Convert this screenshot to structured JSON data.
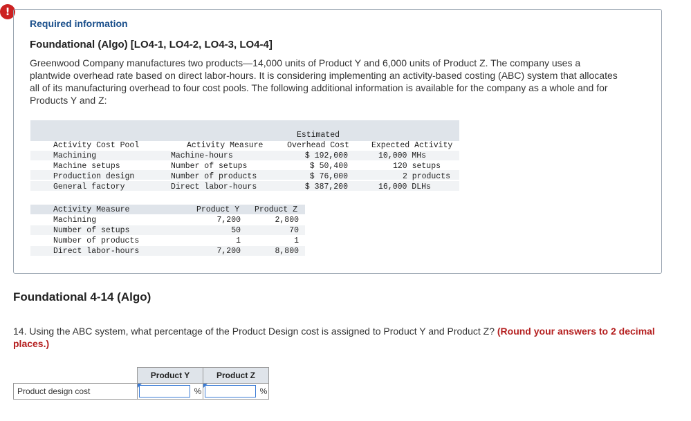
{
  "alert_icon": "!",
  "required_label": "Required information",
  "foundational_title": "Foundational (Algo) [LO4-1, LO4-2, LO4-3, LO4-4]",
  "intro_text": "Greenwood Company manufactures two products—14,000 units of Product Y and 6,000 units of Product Z. The company uses a plantwide overhead rate based on direct labor-hours. It is considering implementing an activity-based costing (ABC) system that allocates all of its manufacturing overhead to four cost pools. The following additional information is available for the company as a whole and for Products Y and Z:",
  "table1": {
    "headers": {
      "pool": "Activity Cost Pool",
      "measure": "Activity Measure",
      "cost_line1": "Estimated",
      "cost_line2": "Overhead Cost",
      "expected": "Expected Activity"
    },
    "rows": [
      {
        "pool": "Machining",
        "measure": "Machine-hours",
        "cost": "$ 192,000",
        "expected": "10,000 MHs"
      },
      {
        "pool": "Machine setups",
        "measure": "Number of setups",
        "cost": "$ 50,400",
        "expected": "120 setups"
      },
      {
        "pool": "Production design",
        "measure": "Number of products",
        "cost": "$ 76,000",
        "expected": "2 products"
      },
      {
        "pool": "General factory",
        "measure": "Direct labor-hours",
        "cost": "$ 387,200",
        "expected": "16,000 DLHs"
      }
    ]
  },
  "table2": {
    "headers": {
      "measure": "Activity Measure",
      "y": "Product Y",
      "z": "Product Z"
    },
    "rows": [
      {
        "measure": "Machining",
        "y": "7,200",
        "z": "2,800"
      },
      {
        "measure": "Number of setups",
        "y": "50",
        "z": "70"
      },
      {
        "measure": "Number of products",
        "y": "1",
        "z": "1"
      },
      {
        "measure": "Direct labor-hours",
        "y": "7,200",
        "z": "8,800"
      }
    ]
  },
  "section_title": "Foundational 4-14 (Algo)",
  "question_text": "14. Using the ABC system, what percentage of the Product Design cost is assigned to Product Y and Product Z? ",
  "question_hint": "(Round your answers to 2 decimal places.)",
  "answer_table": {
    "col_y": "Product Y",
    "col_z": "Product Z",
    "row_label": "Product design cost",
    "pct_symbol": "%",
    "value_y": "",
    "value_z": ""
  }
}
